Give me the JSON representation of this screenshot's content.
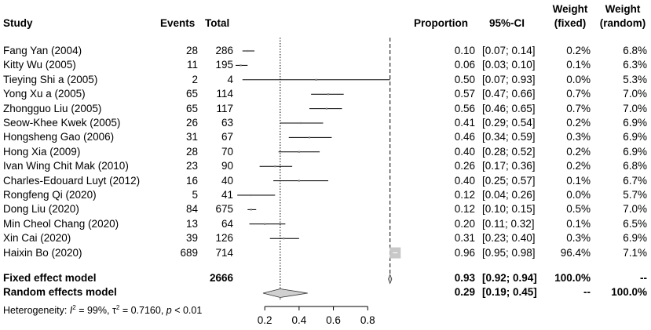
{
  "chart_data": {
    "type": "forest",
    "headers": {
      "study": "Study",
      "events": "Events",
      "total": "Total",
      "proportion": "Proportion",
      "ci": "95%-CI",
      "weight_fixed_1": "Weight",
      "weight_fixed_2": "(fixed)",
      "weight_random_1": "Weight",
      "weight_random_2": "(random)"
    },
    "studies": [
      {
        "study": "Fang Yan (2004)",
        "events": "28",
        "total": "286",
        "prop": 0.1,
        "lo": 0.07,
        "hi": 0.14,
        "prop_text": "0.10",
        "ci_text": "[0.07; 0.14]",
        "w_fixed": "0.2%",
        "w_random": "6.8%"
      },
      {
        "study": "Kitty Wu (2005)",
        "events": "11",
        "total": "195",
        "prop": 0.06,
        "lo": 0.03,
        "hi": 0.1,
        "prop_text": "0.06",
        "ci_text": "[0.03; 0.10]",
        "w_fixed": "0.1%",
        "w_random": "6.3%"
      },
      {
        "study": "Tieying Shi a (2005)",
        "events": "2",
        "total": "4",
        "prop": 0.5,
        "lo": 0.07,
        "hi": 0.93,
        "prop_text": "0.50",
        "ci_text": "[0.07; 0.93]",
        "w_fixed": "0.0%",
        "w_random": "5.3%"
      },
      {
        "study": "Yong Xu a (2005)",
        "events": "65",
        "total": "114",
        "prop": 0.57,
        "lo": 0.47,
        "hi": 0.66,
        "prop_text": "0.57",
        "ci_text": "[0.47; 0.66]",
        "w_fixed": "0.7%",
        "w_random": "7.0%"
      },
      {
        "study": "Zhongguo Liu (2005)",
        "events": "65",
        "total": "117",
        "prop": 0.56,
        "lo": 0.46,
        "hi": 0.65,
        "prop_text": "0.56",
        "ci_text": "[0.46; 0.65]",
        "w_fixed": "0.7%",
        "w_random": "7.0%"
      },
      {
        "study": "Seow-Khee Kwek (2005)",
        "events": "26",
        "total": "63",
        "prop": 0.41,
        "lo": 0.29,
        "hi": 0.54,
        "prop_text": "0.41",
        "ci_text": "[0.29; 0.54]",
        "w_fixed": "0.2%",
        "w_random": "6.9%"
      },
      {
        "study": "Hongsheng Gao (2006)",
        "events": "31",
        "total": "67",
        "prop": 0.46,
        "lo": 0.34,
        "hi": 0.59,
        "prop_text": "0.46",
        "ci_text": "[0.34; 0.59]",
        "w_fixed": "0.3%",
        "w_random": "6.9%"
      },
      {
        "study": "Hong Xia (2009)",
        "events": "28",
        "total": "70",
        "prop": 0.4,
        "lo": 0.28,
        "hi": 0.52,
        "prop_text": "0.40",
        "ci_text": "[0.28; 0.52]",
        "w_fixed": "0.2%",
        "w_random": "6.9%"
      },
      {
        "study": "Ivan Wing Chit Mak (2010)",
        "events": "23",
        "total": "90",
        "prop": 0.26,
        "lo": 0.17,
        "hi": 0.36,
        "prop_text": "0.26",
        "ci_text": "[0.17; 0.36]",
        "w_fixed": "0.2%",
        "w_random": "6.8%"
      },
      {
        "study": "Charles-Edouard Luyt (2012)",
        "events": "16",
        "total": "40",
        "prop": 0.4,
        "lo": 0.25,
        "hi": 0.57,
        "prop_text": "0.40",
        "ci_text": "[0.25; 0.57]",
        "w_fixed": "0.1%",
        "w_random": "6.7%"
      },
      {
        "study": "Rongfeng Qi (2020)",
        "events": "5",
        "total": "41",
        "prop": 0.12,
        "lo": 0.04,
        "hi": 0.26,
        "prop_text": "0.12",
        "ci_text": "[0.04; 0.26]",
        "w_fixed": "0.0%",
        "w_random": "5.7%"
      },
      {
        "study": "Dong Liu (2020)",
        "events": "84",
        "total": "675",
        "prop": 0.12,
        "lo": 0.1,
        "hi": 0.15,
        "prop_text": "0.12",
        "ci_text": "[0.10; 0.15]",
        "w_fixed": "0.5%",
        "w_random": "7.0%"
      },
      {
        "study": "Min Cheol Chang (2020)",
        "events": "13",
        "total": "64",
        "prop": 0.2,
        "lo": 0.11,
        "hi": 0.32,
        "prop_text": "0.20",
        "ci_text": "[0.11; 0.32]",
        "w_fixed": "0.1%",
        "w_random": "6.5%"
      },
      {
        "study": "Xin Cai (2020)",
        "events": "39",
        "total": "126",
        "prop": 0.31,
        "lo": 0.23,
        "hi": 0.4,
        "prop_text": "0.31",
        "ci_text": "[0.23; 0.40]",
        "w_fixed": "0.3%",
        "w_random": "6.9%"
      },
      {
        "study": "Haixin Bo (2020)",
        "events": "689",
        "total": "714",
        "prop": 0.96,
        "lo": 0.95,
        "hi": 0.98,
        "prop_text": "0.96",
        "ci_text": "[0.95; 0.98]",
        "w_fixed": "96.4%",
        "w_random": "7.1%"
      }
    ],
    "fixed": {
      "label": "Fixed effect model",
      "total": "2666",
      "prop": 0.93,
      "lo": 0.92,
      "hi": 0.94,
      "prop_text": "0.93",
      "ci_text": "[0.92; 0.94]",
      "w_fixed": "100.0%",
      "w_random": "--"
    },
    "random": {
      "label": "Random effects model",
      "prop": 0.29,
      "lo": 0.19,
      "hi": 0.45,
      "prop_text": "0.29",
      "ci_text": "[0.19; 0.45]",
      "w_fixed": "--",
      "w_random": "100.0%"
    },
    "heterogeneity": {
      "prefix": "Heterogeneity: ",
      "i2_symbol": "I",
      "i2_value": " = 99%, ",
      "tau_symbol": "τ",
      "tau_value": " = 0.7160, ",
      "p_symbol": "p",
      "p_value": " < 0.01"
    },
    "x_ticks": [
      0.2,
      0.4,
      0.6,
      0.8
    ],
    "x_tick_labels": [
      "0.2",
      "0.4",
      "0.6",
      "0.8"
    ],
    "xlim": [
      0.03,
      1.0
    ]
  }
}
